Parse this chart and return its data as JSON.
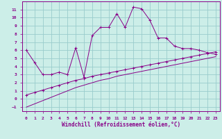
{
  "xlabel": "Windchill (Refroidissement éolien,°C)",
  "bg_color": "#cceee8",
  "line_color": "#880088",
  "grid_color": "#99cccc",
  "x_values": [
    0,
    1,
    2,
    3,
    4,
    5,
    6,
    7,
    8,
    9,
    10,
    11,
    12,
    13,
    14,
    15,
    16,
    17,
    18,
    19,
    20,
    21,
    22,
    23
  ],
  "line1_y": [
    6.0,
    4.5,
    3.0,
    3.0,
    3.3,
    3.0,
    6.3,
    2.7,
    7.8,
    8.8,
    8.8,
    10.5,
    8.8,
    11.3,
    11.1,
    9.7,
    7.5,
    7.5,
    6.5,
    6.2,
    6.2,
    6.0,
    5.7,
    5.5
  ],
  "line2_y": [
    0.5,
    0.8,
    1.1,
    1.4,
    1.7,
    2.0,
    2.3,
    2.5,
    2.8,
    3.0,
    3.2,
    3.4,
    3.6,
    3.8,
    4.0,
    4.2,
    4.4,
    4.6,
    4.8,
    5.0,
    5.2,
    5.4,
    5.6,
    5.8
  ],
  "line3_y": [
    -1.0,
    -0.6,
    -0.2,
    0.2,
    0.6,
    1.0,
    1.4,
    1.7,
    2.0,
    2.3,
    2.5,
    2.8,
    3.0,
    3.2,
    3.4,
    3.6,
    3.8,
    4.0,
    4.2,
    4.4,
    4.6,
    4.8,
    5.0,
    5.2
  ],
  "ylim": [
    -1.5,
    12.0
  ],
  "xlim": [
    -0.5,
    23.5
  ],
  "yticks": [
    -1,
    0,
    1,
    2,
    3,
    4,
    5,
    6,
    7,
    8,
    9,
    10,
    11
  ],
  "xticks": [
    0,
    1,
    2,
    3,
    4,
    5,
    6,
    7,
    8,
    9,
    10,
    11,
    12,
    13,
    14,
    15,
    16,
    17,
    18,
    19,
    20,
    21,
    22,
    23
  ],
  "marker_size": 2.5
}
